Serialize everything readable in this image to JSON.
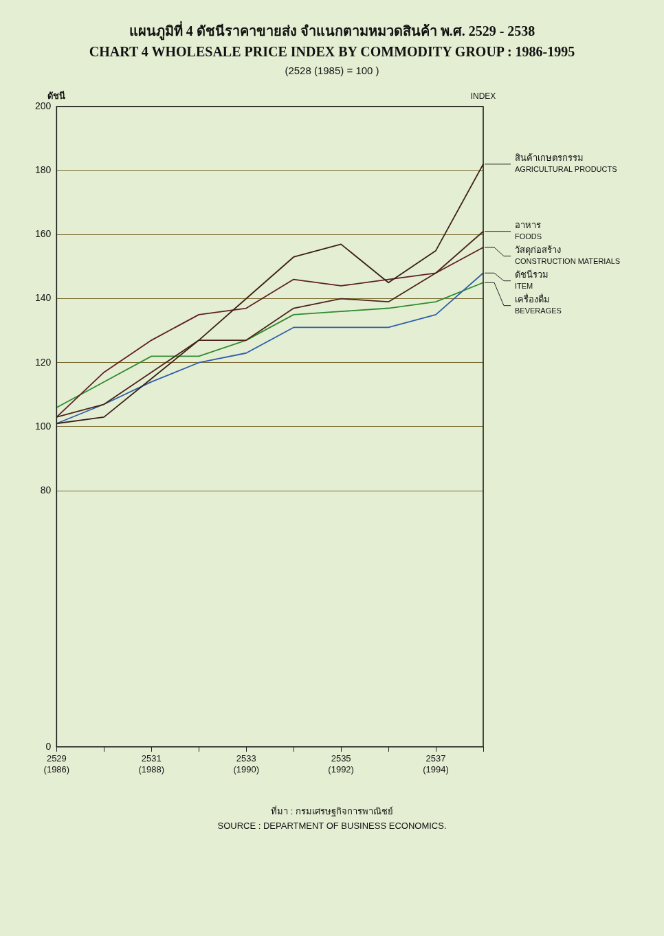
{
  "chart_data": {
    "type": "line",
    "title": "แผนภูมิที่ 4   ดัชนีราคาขายส่ง จำแนกตามหมวดสินค้า พ.ศ. 2529 - 2538\nCHART 4   WHOLESALE PRICE INDEX BY COMMODITY GROUP : 1986-1995",
    "subtitle": "(2528 (1985) = 100 )",
    "ylabel": "ดัชนี",
    "annotations": [
      "INDEX",
      "ที่มา  :  กรมเศรษฐกิจการพาณิชย์\nSOURCE  :  DEPARTMENT OF BUSINESS ECONOMICS."
    ],
    "categories": [
      "2529\n(1986)",
      null,
      "2531\n(1988)",
      null,
      "2533\n(1990)",
      null,
      "2535\n(1992)",
      null,
      "2537\n(1994)",
      null
    ],
    "series": [
      {
        "name": "สินค้าเกษตรกรรม\nAGRICULTURAL PRODUCTS",
        "color": "#3b1f17",
        "values": [
          101,
          103,
          115,
          127,
          140,
          153,
          157,
          145,
          155,
          182
        ]
      },
      {
        "name": "อาหาร\nFOODS",
        "color": "#4a2418",
        "values": [
          103,
          107,
          117,
          127,
          127,
          137,
          140,
          139,
          148,
          161
        ]
      },
      {
        "name": "วัสดุก่อสร้าง\nCONSTRUCTION MATERIALS",
        "color": "#5e1f26",
        "values": [
          103,
          117,
          127,
          135,
          137,
          146,
          144,
          146,
          148,
          156
        ]
      },
      {
        "name": "ดัชนีรวม\nITEM",
        "color": "#2f5fa8",
        "values": [
          101,
          107,
          114,
          120,
          123,
          131,
          131,
          131,
          135,
          148
        ]
      },
      {
        "name": "เครื่องดื่ม\nBEVERAGES",
        "color": "#2e8b2e",
        "values": [
          106,
          114,
          122,
          122,
          127,
          135,
          136,
          137,
          139,
          145
        ]
      }
    ],
    "ylim": [
      0,
      200
    ],
    "yticks": [
      0,
      80,
      100,
      120,
      140,
      160,
      180,
      200
    ],
    "grid": "y",
    "marker": "none"
  }
}
